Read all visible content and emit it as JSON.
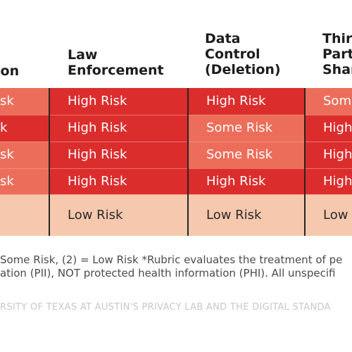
{
  "headers": {
    "col0": [
      "ion"
    ],
    "col1": [
      "Law",
      "Enforcement"
    ],
    "col2": [
      "Data",
      "Control",
      "(Deletion)"
    ],
    "col3": [
      "Thir",
      "Part",
      "Shar"
    ]
  },
  "rows": [
    {
      "col0": "sk",
      "col1": "High Risk",
      "col2": "High Risk",
      "col3": "Som"
    },
    {
      "col0": "k",
      "col1": "High Risk",
      "col2": "Some Risk",
      "col3": "High"
    },
    {
      "col0": "sk",
      "col1": "High Risk",
      "col2": "Some Risk",
      "col3": "High"
    },
    {
      "col0": "sk",
      "col1": "High Risk",
      "col2": "High Risk",
      "col3": "High"
    },
    {
      "col0": "",
      "col1": "Low Risk",
      "col2": "Low Risk",
      "col3": "Low"
    }
  ],
  "notes": {
    "line1": "Some Risk, (2) = Low Risk *Rubric evaluates the treatment of pe",
    "line2": "ation (PII), NOT protected health information (PHI). All unspecifi"
  },
  "credit": "RSITY OF TEXAS AT AUSTIN'S PRIVACY LAB AND THE DIGITAL STANDA",
  "colors": {
    "high": "#dc2d2d",
    "some": "#ec6e5a",
    "low": "#f6c8ad",
    "divider": "#262626"
  }
}
